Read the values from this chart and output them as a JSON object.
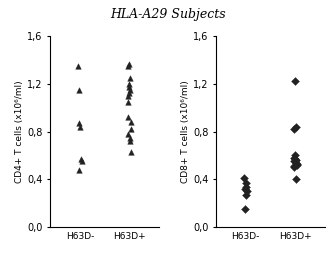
{
  "title": "HLA-A29 Subjects",
  "cd4_h63d_neg": [
    0.48,
    0.55,
    0.57,
    0.84,
    0.87,
    1.15,
    1.35
  ],
  "cd4_h63d_pos": [
    0.63,
    0.72,
    0.75,
    0.78,
    0.82,
    0.88,
    0.92,
    1.05,
    1.1,
    1.12,
    1.15,
    1.17,
    1.2,
    1.25,
    1.35,
    1.36
  ],
  "cd8_h63d_neg": [
    0.15,
    0.27,
    0.3,
    0.32,
    0.34,
    0.37,
    0.41
  ],
  "cd8_h63d_pos": [
    0.4,
    0.5,
    0.51,
    0.52,
    0.53,
    0.54,
    0.55,
    0.55,
    0.56,
    0.57,
    0.58,
    0.6,
    0.82,
    0.84,
    1.22
  ],
  "ylim": [
    0.0,
    1.6
  ],
  "yticks": [
    0.0,
    0.4,
    0.8,
    1.2,
    1.6
  ],
  "ytick_labels": [
    "0,0",
    "0,4",
    "0,8",
    "1,2",
    "1,6"
  ],
  "ylabel_cd4": "CD4+ T cells (x10⁶/ml)",
  "ylabel_cd8": "CD8+ T cells (x10⁶/ml)",
  "xlabel_neg": "H63D-",
  "xlabel_pos": "H63D+",
  "marker_cd4": "^",
  "marker_cd8": "D",
  "marker_color": "#222222",
  "marker_size": 4,
  "title_fontsize": 9,
  "label_fontsize": 6.5,
  "tick_fontsize": 7
}
